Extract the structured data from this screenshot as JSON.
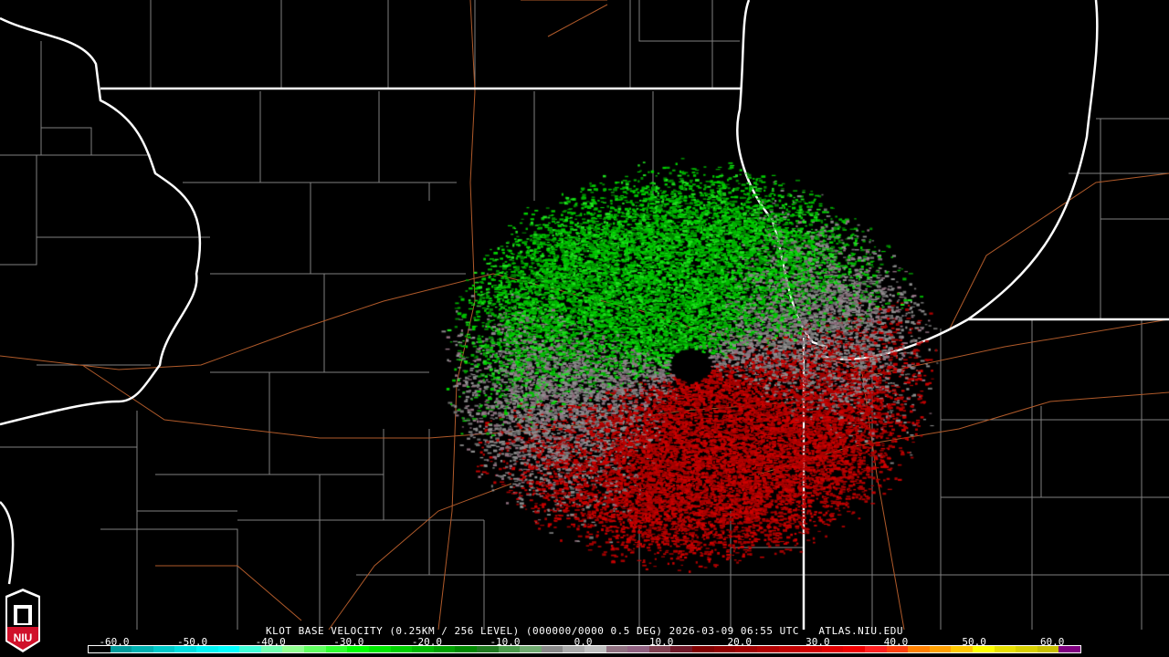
{
  "product": {
    "title": "KLOT BASE VELOCITY (0.25KM / 256 LEVEL) (000000/0000 0.5 DEG) 2026-03-09 06:55 UTC   ATLAS.NIU.EDU",
    "station": "KLOT",
    "datetime": "2026-03-09 06:55 UTC",
    "elevation": "0.5 DEG",
    "source": "ATLAS.NIU.EDU"
  },
  "logo": {
    "text": "NIU"
  },
  "colorbar": {
    "ticks": [
      "-60.0",
      "-50.0",
      "-40.0",
      "-30.0",
      "-20.0",
      "-10.0",
      "0.0",
      "10.0",
      "20.0",
      "30.0",
      "40.0",
      "50.0",
      "60.0"
    ],
    "range": [
      -64,
      64
    ],
    "colors": [
      "#000000",
      "#009a9a",
      "#00b0b0",
      "#00c8c8",
      "#00dede",
      "#00f4f4",
      "#00ffff",
      "#40ffd8",
      "#70ffb0",
      "#90ff90",
      "#60ff60",
      "#30ff30",
      "#00ff00",
      "#00e800",
      "#00d000",
      "#00b800",
      "#00a000",
      "#008800",
      "#207a20",
      "#4a9a4a",
      "#70aa70",
      "#888888",
      "#aaaaaa",
      "#c0c0c0",
      "#907080",
      "#906080",
      "#804050",
      "#701828",
      "#800000",
      "#900000",
      "#a00000",
      "#b00000",
      "#c00000",
      "#d00000",
      "#e00000",
      "#f00000",
      "#ff2020",
      "#ff4010",
      "#ff8000",
      "#ffa000",
      "#ffc800",
      "#ffff00",
      "#e8e000",
      "#d8d000",
      "#c8c000",
      "#800080"
    ]
  },
  "colors": {
    "county": "#808080",
    "state": "#ffffff",
    "road": "#b05a2a",
    "inbound": "#00c000",
    "outbound": "#c00000"
  }
}
